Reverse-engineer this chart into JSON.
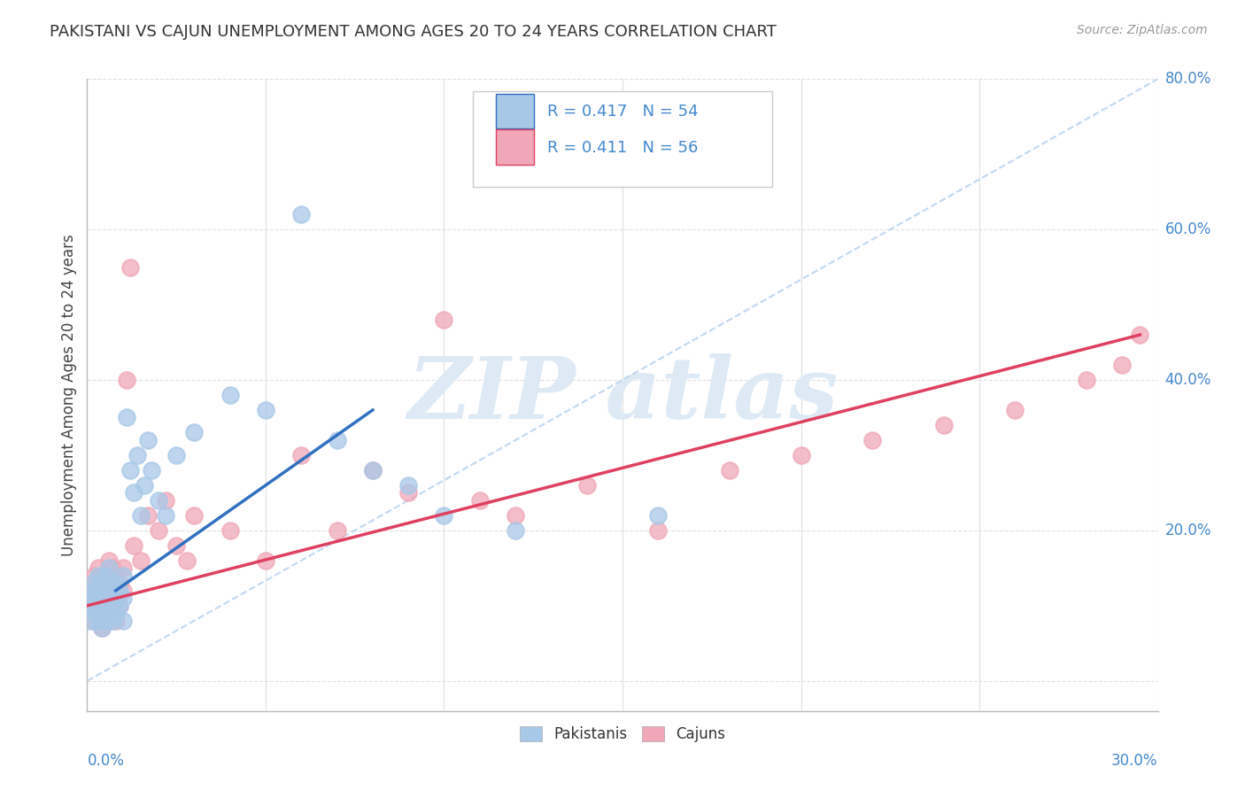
{
  "title": "PAKISTANI VS CAJUN UNEMPLOYMENT AMONG AGES 20 TO 24 YEARS CORRELATION CHART",
  "source": "Source: ZipAtlas.com",
  "ylabel": "Unemployment Among Ages 20 to 24 years",
  "pakistani_R": "0.417",
  "pakistani_N": "54",
  "cajun_R": "0.411",
  "cajun_N": "56",
  "pakistani_color": "#a8c8e8",
  "cajun_color": "#f0a8b8",
  "pakistani_line_color": "#3070c0",
  "cajun_line_color": "#e04060",
  "diag_line_color": "#c0d8f0",
  "background_color": "#ffffff",
  "grid_color": "#e0e0e0",
  "xlim": [
    0.0,
    0.3
  ],
  "ylim": [
    -0.04,
    0.8
  ],
  "y_tick_positions": [
    0.0,
    0.2,
    0.4,
    0.6,
    0.8
  ],
  "y_tick_labels": [
    "",
    "20.0%",
    "40.0%",
    "60.0%",
    "80.0%"
  ],
  "x_tick_labels_left": "0.0%",
  "x_tick_labels_right": "30.0%",
  "pakistani_scatter_x": [
    0.001,
    0.001,
    0.001,
    0.002,
    0.002,
    0.002,
    0.003,
    0.003,
    0.003,
    0.003,
    0.004,
    0.004,
    0.004,
    0.004,
    0.005,
    0.005,
    0.005,
    0.005,
    0.006,
    0.006,
    0.006,
    0.006,
    0.007,
    0.007,
    0.007,
    0.008,
    0.008,
    0.008,
    0.009,
    0.009,
    0.01,
    0.01,
    0.01,
    0.011,
    0.012,
    0.013,
    0.014,
    0.015,
    0.016,
    0.017,
    0.018,
    0.02,
    0.022,
    0.025,
    0.03,
    0.04,
    0.05,
    0.06,
    0.07,
    0.08,
    0.09,
    0.1,
    0.12,
    0.16
  ],
  "pakistani_scatter_y": [
    0.1,
    0.12,
    0.08,
    0.11,
    0.09,
    0.13,
    0.1,
    0.08,
    0.12,
    0.14,
    0.09,
    0.11,
    0.13,
    0.07,
    0.1,
    0.12,
    0.08,
    0.14,
    0.09,
    0.11,
    0.13,
    0.15,
    0.1,
    0.08,
    0.12,
    0.11,
    0.09,
    0.13,
    0.1,
    0.12,
    0.14,
    0.11,
    0.08,
    0.35,
    0.28,
    0.25,
    0.3,
    0.22,
    0.26,
    0.32,
    0.28,
    0.24,
    0.22,
    0.3,
    0.33,
    0.38,
    0.36,
    0.62,
    0.32,
    0.28,
    0.26,
    0.22,
    0.2,
    0.22
  ],
  "cajun_scatter_x": [
    0.001,
    0.001,
    0.002,
    0.002,
    0.002,
    0.003,
    0.003,
    0.003,
    0.004,
    0.004,
    0.004,
    0.005,
    0.005,
    0.005,
    0.006,
    0.006,
    0.006,
    0.007,
    0.007,
    0.007,
    0.008,
    0.008,
    0.008,
    0.009,
    0.009,
    0.01,
    0.01,
    0.011,
    0.012,
    0.013,
    0.015,
    0.017,
    0.02,
    0.022,
    0.025,
    0.028,
    0.03,
    0.04,
    0.05,
    0.06,
    0.07,
    0.08,
    0.09,
    0.1,
    0.11,
    0.12,
    0.14,
    0.16,
    0.18,
    0.2,
    0.22,
    0.24,
    0.26,
    0.28,
    0.29,
    0.295
  ],
  "cajun_scatter_y": [
    0.1,
    0.12,
    0.08,
    0.11,
    0.14,
    0.09,
    0.12,
    0.15,
    0.1,
    0.13,
    0.07,
    0.11,
    0.14,
    0.08,
    0.1,
    0.13,
    0.16,
    0.09,
    0.12,
    0.15,
    0.11,
    0.14,
    0.08,
    0.1,
    0.13,
    0.12,
    0.15,
    0.4,
    0.55,
    0.18,
    0.16,
    0.22,
    0.2,
    0.24,
    0.18,
    0.16,
    0.22,
    0.2,
    0.16,
    0.3,
    0.2,
    0.28,
    0.25,
    0.48,
    0.24,
    0.22,
    0.26,
    0.2,
    0.28,
    0.3,
    0.32,
    0.34,
    0.36,
    0.4,
    0.42,
    0.46
  ],
  "pakistani_line_x": [
    0.008,
    0.08
  ],
  "pakistani_line_y": [
    0.12,
    0.36
  ],
  "cajun_line_x": [
    0.0,
    0.295
  ],
  "cajun_line_y": [
    0.1,
    0.46
  ]
}
